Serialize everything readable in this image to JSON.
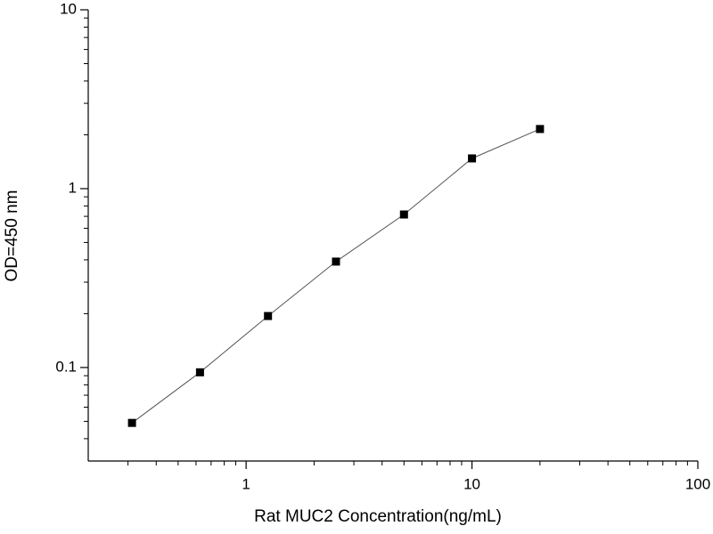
{
  "chart_data": {
    "type": "line",
    "x_label": "Rat MUC2 Concentration(ng/mL)",
    "y_label": "OD=450 nm",
    "x": [
      0.3125,
      0.625,
      1.25,
      2.5,
      5,
      10,
      20
    ],
    "values": [
      0.049,
      0.094,
      0.194,
      0.391,
      0.717,
      1.476,
      2.155
    ],
    "color": "#000000",
    "line_color": "#555555",
    "xscale": "log",
    "yscale": "log",
    "xlim": [
      0.2,
      100
    ],
    "ylim": [
      0.03,
      10
    ],
    "xticks": [
      1,
      10,
      100
    ],
    "yticks": [
      0.1,
      1,
      10
    ],
    "xminorticks": [
      0.3,
      0.4,
      0.5,
      0.6,
      0.7,
      0.8,
      0.9,
      2,
      3,
      4,
      5,
      6,
      7,
      8,
      9,
      20,
      30,
      40,
      50,
      60,
      70,
      80,
      90
    ],
    "yminorticks": [
      0.04,
      0.05,
      0.06,
      0.07,
      0.08,
      0.09,
      0.2,
      0.3,
      0.4,
      0.5,
      0.6,
      0.7,
      0.8,
      0.9,
      2,
      3,
      4,
      5,
      6,
      7,
      8,
      9
    ]
  }
}
